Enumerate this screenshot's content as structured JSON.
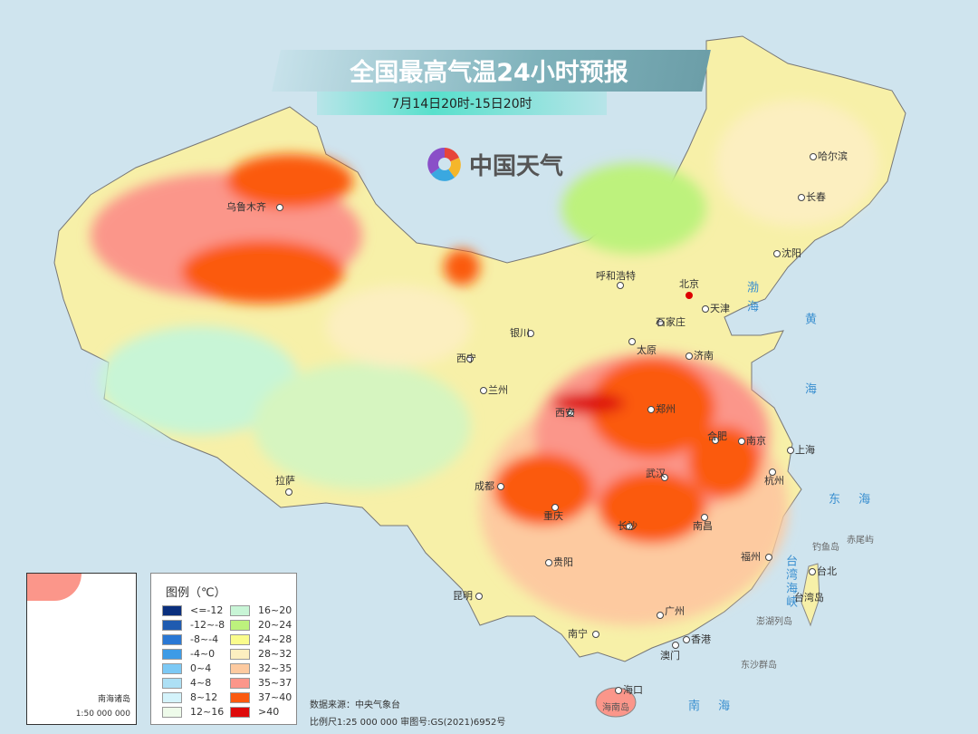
{
  "header": {
    "title": "全国最高气温24小时预报",
    "subtitle": "7月14日20时-15日20时"
  },
  "logo": {
    "text": "中国天气",
    "icon": "pinwheel-logo-icon"
  },
  "cities": [
    {
      "name": "乌鲁木齐"
    },
    {
      "name": "哈尔滨"
    },
    {
      "name": "长春"
    },
    {
      "name": "沈阳"
    },
    {
      "name": "呼和浩特"
    },
    {
      "name": "北京",
      "capital": true
    },
    {
      "name": "天津"
    },
    {
      "name": "石家庄"
    },
    {
      "name": "太原"
    },
    {
      "name": "济南"
    },
    {
      "name": "银川"
    },
    {
      "name": "西宁"
    },
    {
      "name": "兰州"
    },
    {
      "name": "西安"
    },
    {
      "name": "郑州"
    },
    {
      "name": "合肥"
    },
    {
      "name": "南京"
    },
    {
      "name": "上海"
    },
    {
      "name": "武汉"
    },
    {
      "name": "杭州"
    },
    {
      "name": "成都"
    },
    {
      "name": "重庆"
    },
    {
      "name": "长沙"
    },
    {
      "name": "南昌"
    },
    {
      "name": "福州"
    },
    {
      "name": "台北"
    },
    {
      "name": "贵阳"
    },
    {
      "name": "昆明"
    },
    {
      "name": "拉萨"
    },
    {
      "name": "南宁"
    },
    {
      "name": "广州"
    },
    {
      "name": "香港"
    },
    {
      "name": "澳门"
    },
    {
      "name": "海口"
    }
  ],
  "waters": {
    "bohai": "渤 海",
    "huanghai": "黄 海",
    "donghai": "东  海",
    "strait": "台湾海峡",
    "nanhai": "南  海"
  },
  "islands": {
    "diaoyu": "钓鱼岛",
    "chiwei": "赤尾屿",
    "taiwan": "台湾岛",
    "penghu": "澎湖列岛",
    "dongsha": "东沙群岛",
    "hainan": "海南岛"
  },
  "legend": {
    "title": "图例（℃）",
    "items": [
      {
        "label": "<=-12",
        "color": "#0a2f7d"
      },
      {
        "label": "-12~-8",
        "color": "#1f5bb0"
      },
      {
        "label": "-8~-4",
        "color": "#2a78d4"
      },
      {
        "label": "-4~0",
        "color": "#3d9be6"
      },
      {
        "label": "0~4",
        "color": "#7cc9f5"
      },
      {
        "label": "4~8",
        "color": "#ade0f5"
      },
      {
        "label": "8~12",
        "color": "#d4f3fb"
      },
      {
        "label": "12~16",
        "color": "#eefbea"
      },
      {
        "label": "16~20",
        "color": "#c8f5d6"
      },
      {
        "label": "20~24",
        "color": "#bdf27d"
      },
      {
        "label": "24~28",
        "color": "#fafc8c"
      },
      {
        "label": "28~32",
        "color": "#fcefc0"
      },
      {
        "label": "32~35",
        "color": "#fdcaa0"
      },
      {
        "label": "35~37",
        "color": "#fb968a"
      },
      {
        "label": "37~40",
        "color": "#fb5a10"
      },
      {
        "label": ">40",
        "color": "#de0a0a"
      }
    ]
  },
  "inset": {
    "title": "南海诸岛",
    "scale": "1:50 000 000"
  },
  "footer": {
    "source": "数据来源：中央气象台",
    "scale": "比例尺1:25 000 000   审图号:GS(2021)6952号"
  }
}
